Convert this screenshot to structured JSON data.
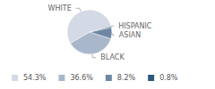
{
  "chart_data": {
    "type": "pie",
    "categories": [
      "WHITE",
      "BLACK",
      "ASIAN",
      "HISPANIC"
    ],
    "values": [
      54.3,
      36.6,
      8.2,
      0.8
    ],
    "value_labels": [
      "54.3%",
      "36.6%",
      "8.2%",
      "0.8%"
    ],
    "colors": [
      "#d3dae5",
      "#a9b7ca",
      "#6f87a3",
      "#2f5878"
    ],
    "legend": "bottom"
  }
}
